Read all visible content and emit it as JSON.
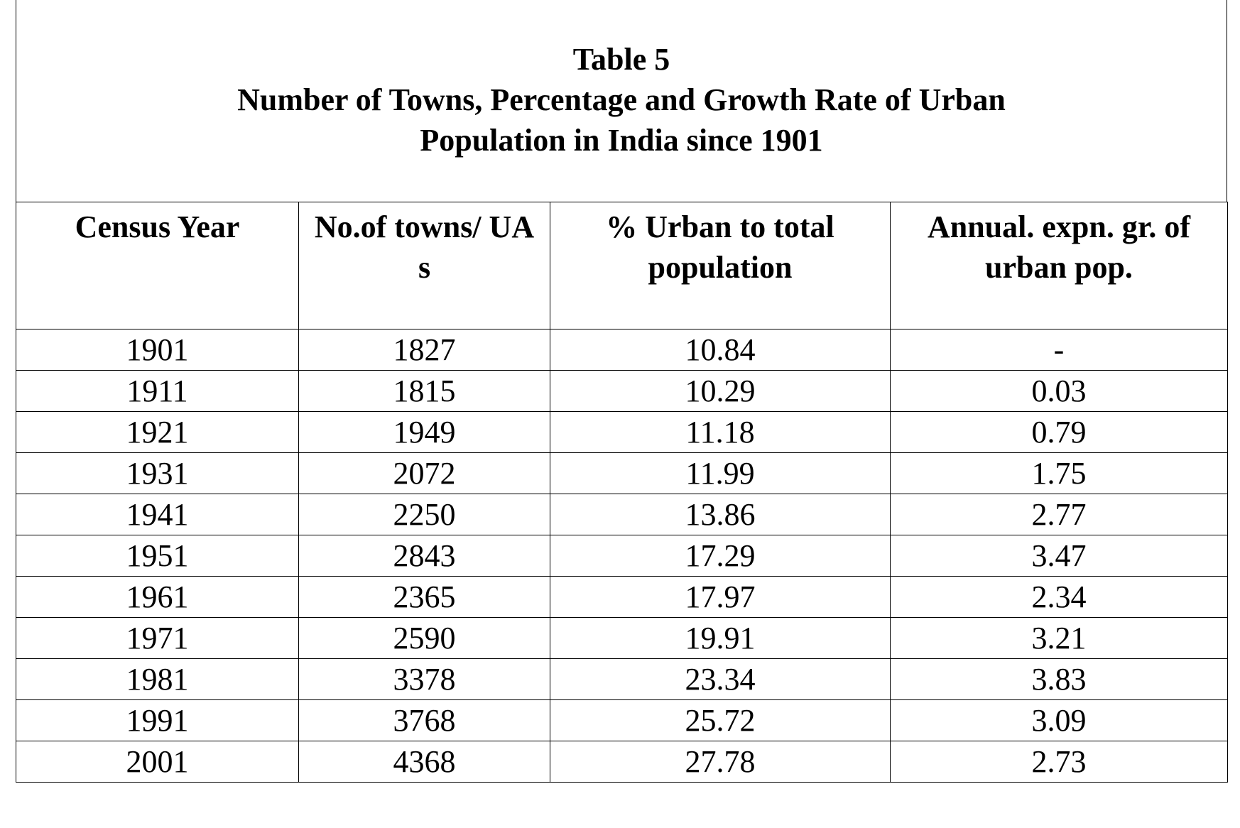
{
  "table": {
    "label": "Table 5",
    "title": "Number of Towns, Percentage and Growth Rate of Urban Population in India since 1901",
    "columns": [
      "Census Year",
      "No.of towns/ UA s",
      "% Urban to total population",
      "Annual. expn. gr. of urban pop."
    ],
    "rows": [
      [
        1901,
        1827,
        10.84,
        "-"
      ],
      [
        1911,
        1815,
        10.29,
        0.03
      ],
      [
        1921,
        1949,
        11.18,
        0.79
      ],
      [
        1931,
        2072,
        11.99,
        1.75
      ],
      [
        1941,
        2250,
        13.86,
        2.77
      ],
      [
        1951,
        2843,
        17.29,
        3.47
      ],
      [
        1961,
        2365,
        17.97,
        2.34
      ],
      [
        1971,
        2590,
        19.91,
        3.21
      ],
      [
        1981,
        3378,
        23.34,
        3.83
      ],
      [
        1991,
        3768,
        25.72,
        3.09
      ],
      [
        2001,
        4368,
        27.78,
        2.73
      ]
    ]
  }
}
